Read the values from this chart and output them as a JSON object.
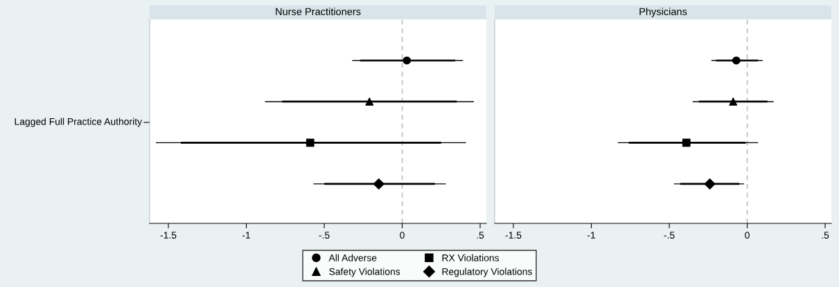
{
  "chart_data": [
    {
      "type": "scatter",
      "title": "Nurse Practitioners",
      "orientation": "horizontal",
      "categories": [
        null,
        null,
        null,
        null
      ],
      "xlim": [
        -1.62,
        0.54
      ],
      "xticks": [
        {
          "value": -1.5,
          "label": "-1.5"
        },
        {
          "value": -1,
          "label": "-1"
        },
        {
          "value": -0.5,
          "label": "-.5"
        },
        {
          "value": 0,
          "label": "0"
        },
        {
          "value": 0.5,
          "label": ".5"
        }
      ],
      "annotations": [
        "Lagged Full Practice Authority"
      ],
      "ref_lines": [
        {
          "axis": "x",
          "value": 0,
          "color": "#b0b0b0",
          "line_style": "dashed"
        }
      ],
      "legend": "bottom",
      "grid": false,
      "series": [
        {
          "type": "bar",
          "color": "#000000",
          "base": [
            -0.27,
            -0.77,
            -1.42,
            -0.5
          ],
          "values": [
            0.61,
            1.12,
            1.67,
            0.71
          ]
        },
        {
          "name": "All Adverse",
          "marker": "circle",
          "color": "#000000",
          "values": [
            0.03,
            null,
            null,
            null
          ],
          "errors": [
            [
              -0.32,
              0.39
            ],
            null,
            null,
            null
          ]
        },
        {
          "name": "Safety Violations",
          "marker": "triangle",
          "color": "#000000",
          "values": [
            null,
            -0.21,
            null,
            null
          ],
          "errors": [
            null,
            [
              -0.88,
              0.46
            ],
            null,
            null
          ]
        },
        {
          "name": "RX Violations",
          "marker": "square",
          "color": "#000000",
          "values": [
            null,
            null,
            -0.59,
            null
          ],
          "errors": [
            null,
            null,
            [
              -1.58,
              0.41
            ],
            null
          ]
        },
        {
          "name": "Regulatory Violations",
          "marker": "diamond",
          "color": "#000000",
          "values": [
            null,
            null,
            null,
            -0.15
          ],
          "errors": [
            null,
            null,
            null,
            [
              -0.57,
              0.28
            ]
          ]
        }
      ]
    },
    {
      "type": "scatter",
      "title": "Physicians",
      "orientation": "horizontal",
      "categories": [
        null,
        null,
        null,
        null
      ],
      "xlim": [
        -1.62,
        0.54
      ],
      "xticks": [
        {
          "value": -1.5,
          "label": "-1.5"
        },
        {
          "value": -1,
          "label": "-1"
        },
        {
          "value": -0.5,
          "label": "-.5"
        },
        {
          "value": 0,
          "label": "0"
        },
        {
          "value": 0.5,
          "label": ".5"
        }
      ],
      "ref_lines": [
        {
          "axis": "x",
          "value": 0,
          "color": "#b0b0b0",
          "line_style": "dashed"
        }
      ],
      "legend": "bottom",
      "grid": false,
      "series": [
        {
          "type": "bar",
          "color": "#000000",
          "base": [
            -0.2,
            -0.31,
            -0.76,
            -0.43
          ],
          "values": [
            0.27,
            0.44,
            0.75,
            0.38
          ]
        },
        {
          "name": "All Adverse",
          "marker": "circle",
          "color": "#000000",
          "values": [
            -0.07,
            null,
            null,
            null
          ],
          "errors": [
            [
              -0.23,
              0.1
            ],
            null,
            null,
            null
          ]
        },
        {
          "name": "Safety Violations",
          "marker": "triangle",
          "color": "#000000",
          "values": [
            null,
            -0.09,
            null,
            null
          ],
          "errors": [
            null,
            [
              -0.35,
              0.17
            ],
            null,
            null
          ]
        },
        {
          "name": "RX Violations",
          "marker": "square",
          "color": "#000000",
          "values": [
            null,
            null,
            -0.39,
            null
          ],
          "errors": [
            null,
            null,
            [
              -0.83,
              0.07
            ],
            null
          ]
        },
        {
          "name": "Regulatory Violations",
          "marker": "diamond",
          "color": "#000000",
          "values": [
            null,
            null,
            null,
            -0.24
          ],
          "errors": [
            null,
            null,
            null,
            [
              -0.47,
              -0.02
            ]
          ]
        }
      ]
    }
  ]
}
